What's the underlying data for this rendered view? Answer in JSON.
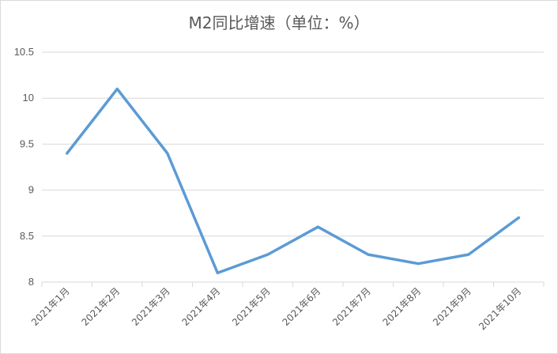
{
  "chart_data": {
    "type": "line",
    "title": "M2同比增速（单位：%）",
    "xlabel": "",
    "ylabel": "",
    "categories": [
      "2021年1月",
      "2021年2月",
      "2021年3月",
      "2021年4月",
      "2021年5月",
      "2021年6月",
      "2021年7月",
      "2021年8月",
      "2021年9月",
      "2021年10月"
    ],
    "series": [
      {
        "values": [
          9.4,
          10.1,
          9.4,
          8.1,
          8.3,
          8.6,
          8.3,
          8.2,
          8.3,
          8.7
        ]
      }
    ],
    "yticks": [
      "8",
      "8.5",
      "9",
      "9.5",
      "10",
      "10.5"
    ],
    "ylim": [
      8,
      10.5
    ],
    "grid": true,
    "legend": "none",
    "colors": {
      "line": "#5b9bd5",
      "grid": "#d9d9d9",
      "text": "#595959"
    }
  }
}
